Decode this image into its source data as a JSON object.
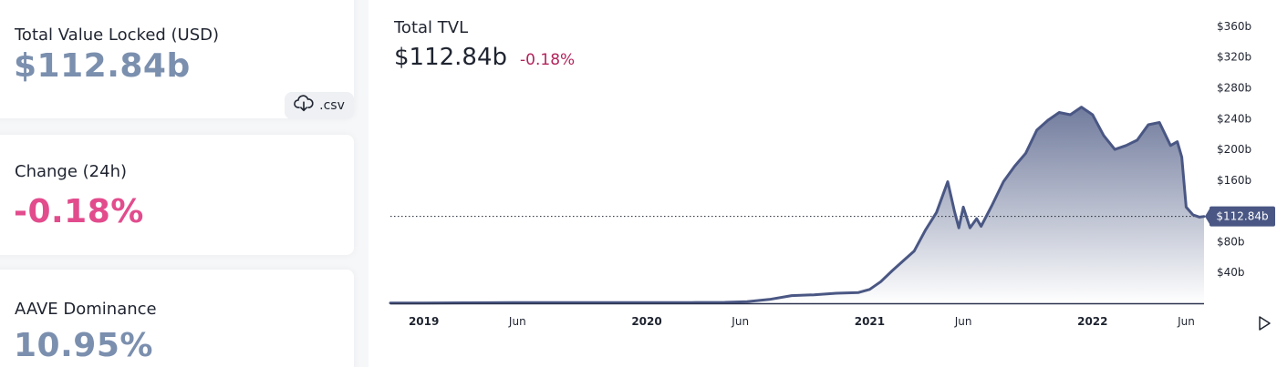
{
  "theme": {
    "value_color": "#7b8fae",
    "negative_color": "#e24c8d",
    "headline_negative_color": "#b2245b",
    "line_color": "#4a5784",
    "area_top_color": "#6a7598",
    "area_bottom_color": "#ffffff",
    "marker_bg": "#4a5784"
  },
  "stats": {
    "tvl_label": "Total Value Locked (USD)",
    "tvl_value": "$112.84b",
    "change_label": "Change (24h)",
    "change_value": "-0.18%",
    "dominance_label": "AAVE Dominance",
    "dominance_value": "10.95%",
    "csv_label": ".csv",
    "csv_icon": "cloud-download-icon"
  },
  "chart_header": {
    "title": "Total TVL",
    "value": "$112.84b",
    "change": "-0.18%"
  },
  "chart_data": {
    "type": "area",
    "title": "Total TVL",
    "xlabel": "",
    "ylabel": "",
    "ylim": [
      0,
      380
    ],
    "y_unit": "billions USD",
    "x_range": [
      2018.85,
      2022.5
    ],
    "y_ticks": [
      "$40b",
      "$80b",
      "$160b",
      "$200b",
      "$240b",
      "$280b",
      "$320b",
      "$360b"
    ],
    "y_tick_values": [
      40,
      80,
      160,
      200,
      240,
      280,
      320,
      360
    ],
    "x_ticks": [
      {
        "label": "2019",
        "x": 2019.0,
        "bold": true
      },
      {
        "label": "Jun",
        "x": 2019.42,
        "bold": false
      },
      {
        "label": "2020",
        "x": 2020.0,
        "bold": true
      },
      {
        "label": "Jun",
        "x": 2020.42,
        "bold": false
      },
      {
        "label": "2021",
        "x": 2021.0,
        "bold": true
      },
      {
        "label": "Jun",
        "x": 2021.42,
        "bold": false
      },
      {
        "label": "2022",
        "x": 2022.0,
        "bold": true
      },
      {
        "label": "Jun",
        "x": 2022.42,
        "bold": false
      }
    ],
    "current_value": 112.84,
    "current_label": "$112.84b",
    "series": [
      {
        "x": [
          2018.85,
          2019.0,
          2019.2,
          2019.4,
          2019.6,
          2019.8,
          2020.0,
          2020.2,
          2020.35,
          2020.45,
          2020.55,
          2020.65,
          2020.75,
          2020.85,
          2020.95,
          2021.0,
          2021.05,
          2021.1,
          2021.15,
          2021.2,
          2021.25,
          2021.3,
          2021.35,
          2021.38,
          2021.4,
          2021.42,
          2021.45,
          2021.48,
          2021.5,
          2021.55,
          2021.6,
          2021.65,
          2021.7,
          2021.75,
          2021.8,
          2021.85,
          2021.9,
          2021.95,
          2022.0,
          2022.05,
          2022.1,
          2022.15,
          2022.2,
          2022.25,
          2022.3,
          2022.35,
          2022.38,
          2022.4,
          2022.42,
          2022.45,
          2022.48,
          2022.5
        ],
        "y": [
          0.3,
          0.4,
          0.6,
          0.8,
          0.9,
          0.8,
          0.9,
          1.0,
          1.2,
          2.0,
          5.0,
          10.0,
          11.0,
          13.0,
          14.0,
          18.0,
          28.0,
          42.0,
          55.0,
          68.0,
          95.0,
          118.0,
          158.0,
          120.0,
          98.0,
          125.0,
          98.0,
          110.0,
          100.0,
          128.0,
          158.0,
          178.0,
          195.0,
          225.0,
          238.0,
          248.0,
          245.0,
          255.0,
          245.0,
          218.0,
          200.0,
          205.0,
          212.0,
          232.0,
          235.0,
          205.0,
          210.0,
          190.0,
          125.0,
          115.0,
          112.0,
          112.84
        ]
      }
    ]
  }
}
